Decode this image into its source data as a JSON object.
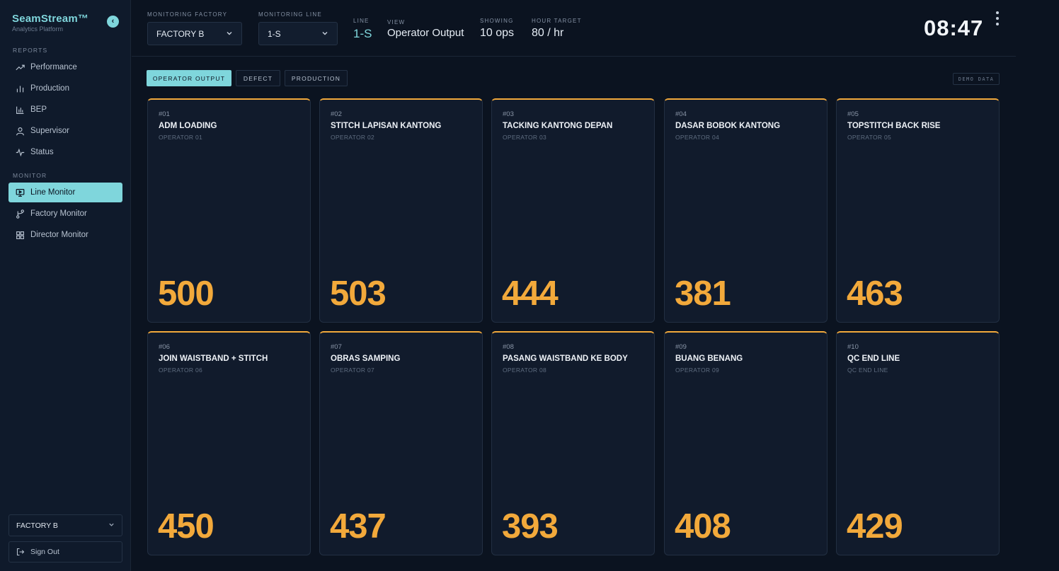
{
  "brand": {
    "name": "SeamStream™",
    "sub": "Analytics Platform",
    "collapse_glyph": "‹"
  },
  "sidebar": {
    "reports_label": "REPORTS",
    "monitor_label": "MONITOR",
    "reports": [
      {
        "label": "Performance",
        "icon": "trending-up-icon"
      },
      {
        "label": "Production",
        "icon": "bar-chart-icon"
      },
      {
        "label": "BEP",
        "icon": "chart-axis-icon"
      },
      {
        "label": "Supervisor",
        "icon": "user-icon"
      },
      {
        "label": "Status",
        "icon": "activity-icon"
      }
    ],
    "monitor": [
      {
        "label": "Line Monitor",
        "icon": "monitor-icon",
        "active": true
      },
      {
        "label": "Factory Monitor",
        "icon": "branch-icon"
      },
      {
        "label": "Director Monitor",
        "icon": "grid-icon"
      }
    ],
    "factory_select": "FACTORY B",
    "sign_out": "Sign Out"
  },
  "header": {
    "factory_label": "MONITORING FACTORY",
    "factory_value": "FACTORY B",
    "line_label": "MONITORING LINE",
    "line_value": "1-S",
    "line_info_label": "LINE",
    "line_info_value": "1-S",
    "view_label": "VIEW",
    "view_value": "Operator Output",
    "showing_label": "SHOWING",
    "showing_value": "10 ops",
    "target_label": "HOUR TARGET",
    "target_value": "80 / hr",
    "clock": "08:47"
  },
  "tabs": [
    {
      "label": "OPERATOR OUTPUT",
      "active": true
    },
    {
      "label": "DEFECT",
      "active": false
    },
    {
      "label": "PRODUCTION",
      "active": false
    }
  ],
  "demo_badge": "DEMO DATA",
  "colors": {
    "accent": "#7fd6dc",
    "output": "#f2a93b",
    "background": "#0b1320"
  },
  "operators": [
    {
      "num": "#01",
      "title": "ADM LOADING",
      "operator": "OPERATOR 01",
      "value": "500"
    },
    {
      "num": "#02",
      "title": "STITCH LAPISAN KANTONG",
      "operator": "OPERATOR 02",
      "value": "503"
    },
    {
      "num": "#03",
      "title": "TACKING KANTONG DEPAN",
      "operator": "OPERATOR 03",
      "value": "444"
    },
    {
      "num": "#04",
      "title": "DASAR BOBOK KANTONG",
      "operator": "OPERATOR 04",
      "value": "381"
    },
    {
      "num": "#05",
      "title": "TOPSTITCH BACK RISE",
      "operator": "OPERATOR 05",
      "value": "463"
    },
    {
      "num": "#06",
      "title": "JOIN WAISTBAND + STITCH",
      "operator": "OPERATOR 06",
      "value": "450"
    },
    {
      "num": "#07",
      "title": "OBRAS SAMPING",
      "operator": "OPERATOR 07",
      "value": "437"
    },
    {
      "num": "#08",
      "title": "PASANG WAISTBAND KE BODY",
      "operator": "OPERATOR 08",
      "value": "393"
    },
    {
      "num": "#09",
      "title": "BUANG BENANG",
      "operator": "OPERATOR 09",
      "value": "408"
    },
    {
      "num": "#10",
      "title": "QC END LINE",
      "operator": "QC END LINE",
      "value": "429"
    }
  ]
}
